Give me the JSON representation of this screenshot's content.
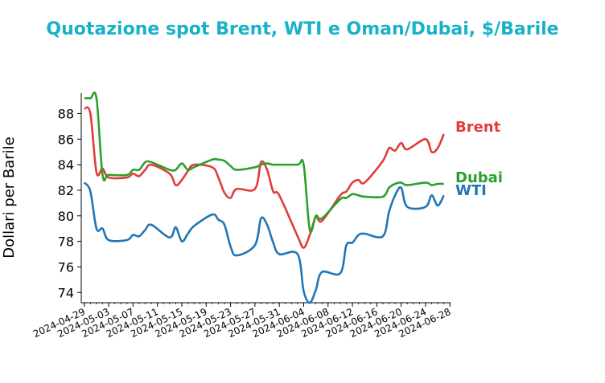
{
  "chart_data": {
    "type": "line",
    "title": "Quotazione spot Brent, WTI e Oman/Dubai, $/Barile",
    "xlabel": "",
    "ylabel": "Dollari per Barile",
    "ylim": [
      73.2,
      89.6
    ],
    "yticks": [
      74,
      76,
      78,
      80,
      82,
      84,
      86,
      88
    ],
    "xticks": [
      "2024-04-29",
      "2024-05-03",
      "2024-05-07",
      "2024-05-11",
      "2024-05-15",
      "2024-05-19",
      "2024-05-23",
      "2024-05-27",
      "2024-05-31",
      "2024-06-04",
      "2024-06-08",
      "2024-06-12",
      "2024-06-16",
      "2024-06-20",
      "2024-06-24",
      "2024-06-28"
    ],
    "grid": false,
    "legend": "inline-right",
    "title_color": "#17b2c9",
    "x": [
      "2024-04-29",
      "2024-04-30",
      "2024-05-01",
      "2024-05-02",
      "2024-05-03",
      "2024-05-06",
      "2024-05-07",
      "2024-05-08",
      "2024-05-09",
      "2024-05-10",
      "2024-05-13",
      "2024-05-14",
      "2024-05-15",
      "2024-05-16",
      "2024-05-17",
      "2024-05-20",
      "2024-05-21",
      "2024-05-22",
      "2024-05-23",
      "2024-05-24",
      "2024-05-27",
      "2024-05-28",
      "2024-05-29",
      "2024-05-30",
      "2024-05-31",
      "2024-06-03",
      "2024-06-04",
      "2024-06-05",
      "2024-06-06",
      "2024-06-07",
      "2024-06-10",
      "2024-06-11",
      "2024-06-12",
      "2024-06-13",
      "2024-06-14",
      "2024-06-17",
      "2024-06-18",
      "2024-06-19",
      "2024-06-20",
      "2024-06-21",
      "2024-06-24",
      "2024-06-25",
      "2024-06-26",
      "2024-06-27"
    ],
    "series": [
      {
        "name": "Brent",
        "color": "#e03c3c",
        "values": [
          88.4,
          88.0,
          83.4,
          83.7,
          83.0,
          83.0,
          83.3,
          83.1,
          83.6,
          84.0,
          83.3,
          82.4,
          82.8,
          83.5,
          84.0,
          83.8,
          83.0,
          81.8,
          81.4,
          82.1,
          82.1,
          84.2,
          83.6,
          81.9,
          81.6,
          78.4,
          77.5,
          78.5,
          79.9,
          79.6,
          81.6,
          81.9,
          82.6,
          82.8,
          82.6,
          84.3,
          85.3,
          85.1,
          85.7,
          85.2,
          86.0,
          85.0,
          85.3,
          86.4
        ]
      },
      {
        "name": "WTI",
        "color": "#2176b6",
        "values": [
          82.6,
          81.9,
          79.0,
          79.0,
          78.1,
          78.1,
          78.5,
          78.4,
          78.9,
          79.3,
          78.3,
          79.1,
          78.0,
          78.6,
          79.2,
          80.1,
          79.7,
          79.3,
          77.6,
          76.9,
          77.7,
          79.8,
          79.3,
          77.9,
          77.0,
          77.0,
          74.1,
          73.2,
          74.2,
          75.6,
          75.5,
          77.7,
          77.9,
          78.5,
          78.6,
          78.4,
          80.3,
          81.6,
          82.2,
          80.7,
          80.7,
          81.6,
          80.8,
          81.6
        ]
      },
      {
        "name": "Dubai",
        "color": "#2ca02c",
        "values": [
          89.2,
          89.2,
          89.2,
          83.2,
          83.2,
          83.2,
          83.6,
          83.6,
          84.2,
          84.2,
          83.6,
          83.6,
          84.1,
          83.6,
          83.8,
          84.4,
          84.4,
          84.3,
          83.9,
          83.6,
          83.8,
          84.0,
          84.1,
          84.0,
          84.0,
          84.0,
          84.0,
          78.9,
          80.0,
          79.8,
          81.3,
          81.4,
          81.7,
          81.6,
          81.5,
          81.5,
          82.2,
          82.5,
          82.6,
          82.4,
          82.6,
          82.4,
          82.5,
          82.5
        ]
      }
    ]
  }
}
